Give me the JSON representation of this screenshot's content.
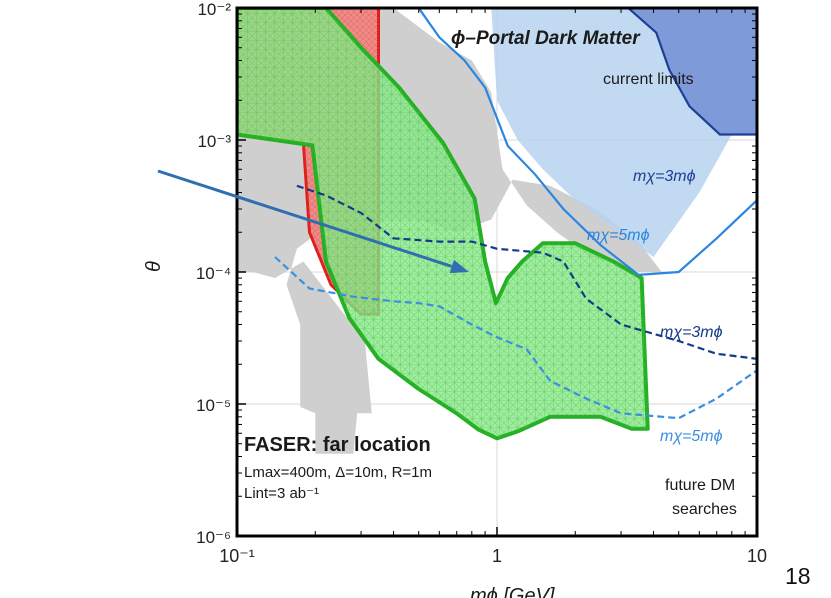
{
  "chart_data": {
    "type": "area",
    "title": "ϕ–Portal Dark Matter",
    "subtitle": "current limits",
    "xlabel": "mϕ [GeV]",
    "ylabel": "θ",
    "x_scale": "log",
    "y_scale": "log",
    "xlim": [
      0.1,
      10
    ],
    "ylim": [
      1e-06,
      0.01
    ],
    "grid": true,
    "x_ticks": [
      {
        "value": 0.1,
        "label": "10⁻¹"
      },
      {
        "value": 1,
        "label": "1"
      },
      {
        "value": 10,
        "label": "10"
      }
    ],
    "y_ticks": [
      {
        "value": 0.01,
        "label": "10⁻²"
      },
      {
        "value": 0.001,
        "label": "10⁻³"
      },
      {
        "value": 0.0001,
        "label": "10⁻⁴"
      },
      {
        "value": 1e-05,
        "label": "10⁻⁵"
      },
      {
        "value": 1e-06,
        "label": "10⁻⁶"
      }
    ],
    "regions": [
      {
        "key": "bbn_gray",
        "color": "#cfcfcf",
        "points": [
          [
            0.1,
            0.01
          ],
          [
            0.4,
            0.01
          ],
          [
            0.6,
            0.0055
          ],
          [
            0.8,
            0.004
          ],
          [
            0.95,
            0.0023
          ],
          [
            1.05,
            0.0006
          ],
          [
            1.3,
            0.00032
          ],
          [
            1.7,
            0.0002
          ],
          [
            2.3,
            0.00013
          ],
          [
            3.5,
            0.0001
          ],
          [
            4.3,
            0.0001
          ],
          [
            3.5,
            0.00017
          ],
          [
            2.4,
            0.0003
          ],
          [
            1.6,
            0.00045
          ],
          [
            1.15,
            0.0005
          ],
          [
            0.95,
            0.00025
          ],
          [
            0.7,
            0.0002
          ],
          [
            0.5,
            0.00025
          ],
          [
            0.35,
            0.00025
          ],
          [
            0.22,
            0.00022
          ],
          [
            0.17,
            0.00015
          ],
          [
            0.155,
            8e-05
          ],
          [
            0.175,
            4e-05
          ],
          [
            0.175,
            9.5e-06
          ],
          [
            0.2,
            8.5e-06
          ],
          [
            0.2,
            4.2e-06
          ],
          [
            0.28,
            4.2e-06
          ],
          [
            0.29,
            8.5e-06
          ],
          [
            0.33,
            8.5e-06
          ],
          [
            0.31,
            3e-05
          ],
          [
            0.18,
            0.00012
          ],
          [
            0.14,
            9e-05
          ],
          [
            0.115,
            0.0001
          ],
          [
            0.1,
            0.0001
          ]
        ]
      },
      {
        "key": "current_light",
        "color": "#b6d3ef",
        "points": [
          [
            0.95,
            0.01
          ],
          [
            10,
            0.01
          ],
          [
            10,
            0.0011
          ],
          [
            8,
            0.0011
          ],
          [
            6,
            0.0004
          ],
          [
            4,
            0.00013
          ],
          [
            2.6,
            0.00024
          ],
          [
            2,
            0.00035
          ],
          [
            1.5,
            0.0006
          ],
          [
            1.2,
            0.001
          ],
          [
            1,
            0.002
          ]
        ]
      },
      {
        "key": "current_dark",
        "color": "#7f9ad9",
        "points": [
          [
            3.2,
            0.01
          ],
          [
            10,
            0.01
          ],
          [
            10,
            0.0011
          ],
          [
            7.2,
            0.0011
          ],
          [
            5.5,
            0.0018
          ],
          [
            4.6,
            0.0034
          ],
          [
            4.1,
            0.0065
          ]
        ]
      },
      {
        "key": "red_excluded",
        "color": "#f28b85",
        "points": [
          [
            0.1,
            0.01
          ],
          [
            0.35,
            0.01
          ],
          [
            0.35,
            4.8e-05
          ],
          [
            0.3,
            4.8e-05
          ],
          [
            0.23,
            8e-05
          ],
          [
            0.19,
            0.0002
          ],
          [
            0.18,
            0.00095
          ],
          [
            0.1,
            0.0011
          ]
        ]
      },
      {
        "key": "faser_far",
        "color": "#88e888",
        "points": [
          [
            0.1,
            0.0011
          ],
          [
            0.195,
            0.00091
          ],
          [
            0.22,
            0.00012
          ],
          [
            0.27,
            4.5e-05
          ],
          [
            0.35,
            2.2e-05
          ],
          [
            0.5,
            1.3e-05
          ],
          [
            0.7,
            8.5e-06
          ],
          [
            0.85,
            6.4e-06
          ],
          [
            1,
            5.5e-06
          ],
          [
            1.2,
            6.2e-06
          ],
          [
            1.6,
            8e-06
          ],
          [
            2.5,
            8e-06
          ],
          [
            3.3,
            6.5e-06
          ],
          [
            3.8,
            6.5e-06
          ],
          [
            3.6,
            9e-05
          ],
          [
            2.8,
            0.00012
          ],
          [
            2,
            0.000165
          ],
          [
            1.5,
            0.000165
          ],
          [
            1.25,
            0.00012
          ],
          [
            1.1,
            9e-05
          ],
          [
            0.99,
            5.8e-05
          ],
          [
            0.9,
            0.00012
          ],
          [
            0.82,
            0.00036
          ],
          [
            0.62,
            0.00095
          ],
          [
            0.42,
            0.0025
          ],
          [
            0.3,
            0.005
          ],
          [
            0.22,
            0.01
          ],
          [
            0.1,
            0.01
          ]
        ]
      }
    ],
    "series": [
      {
        "key": "dark_3",
        "style": "dashed",
        "color": "#123c8a",
        "points": [
          [
            0.17,
            0.00045
          ],
          [
            0.22,
            0.00038
          ],
          [
            0.3,
            0.00028
          ],
          [
            0.4,
            0.00018
          ],
          [
            0.6,
            0.00017
          ],
          [
            0.8,
            0.00017
          ],
          [
            1,
            0.00015
          ],
          [
            1.5,
            0.00014
          ],
          [
            1.8,
            0.00012
          ],
          [
            2.2,
            6.3e-05
          ],
          [
            3,
            4e-05
          ],
          [
            5,
            3e-05
          ],
          [
            7,
            2.4e-05
          ],
          [
            10,
            2.2e-05
          ]
        ]
      },
      {
        "key": "dark_5",
        "style": "dashed",
        "color": "#3b8fe0",
        "points": [
          [
            0.14,
            0.00013
          ],
          [
            0.19,
            7.5e-05
          ],
          [
            0.28,
            6.5e-05
          ],
          [
            0.4,
            6e-05
          ],
          [
            0.5,
            5.8e-05
          ],
          [
            0.6,
            5.5e-05
          ],
          [
            0.8,
            4e-05
          ],
          [
            1,
            3.2e-05
          ],
          [
            1.3,
            2.6e-05
          ],
          [
            1.6,
            1.5e-05
          ],
          [
            2.2,
            1.1e-05
          ],
          [
            3,
            8.5e-06
          ],
          [
            5,
            7.8e-06
          ],
          [
            7,
            1.1e-05
          ],
          [
            10,
            1.8e-05
          ]
        ]
      },
      {
        "key": "current_3",
        "style": "solid",
        "color": "#1f3f95",
        "points": [
          [
            3.2,
            0.01
          ],
          [
            4.1,
            0.0065
          ],
          [
            4.6,
            0.0034
          ],
          [
            5.5,
            0.0018
          ],
          [
            7.2,
            0.0011
          ],
          [
            10,
            0.0011
          ]
        ]
      },
      {
        "key": "current_5",
        "style": "solid",
        "color": "#2a86e0",
        "points": [
          [
            0.5,
            0.01
          ],
          [
            0.6,
            0.006
          ],
          [
            0.75,
            0.004
          ],
          [
            0.9,
            0.0025
          ],
          [
            1.1,
            0.0009
          ],
          [
            1.4,
            0.00055
          ],
          [
            1.8,
            0.0003
          ],
          [
            2.5,
            0.00016
          ],
          [
            3.5,
            9.5e-05
          ],
          [
            5,
            0.0001
          ],
          [
            7,
            0.00018
          ],
          [
            10,
            0.00035
          ]
        ]
      }
    ],
    "annotations": {
      "mx3_current": "mχ=3mϕ",
      "mx5_current": "mχ=5mϕ",
      "mx3_future": "mχ=3mϕ",
      "mx5_future": "mχ=5mϕ",
      "faser_title": "FASER: far location",
      "faser_params": "Lmax=400m, Δ=10m, R=1m",
      "faser_lumi": "Lint=3 ab⁻¹",
      "future_dm_1": "future DM",
      "future_dm_2": "searches"
    },
    "arrow": {
      "color": "#2f6fb0",
      "tip_data": [
        0.78,
        0.0001
      ]
    },
    "colors": {
      "frame": "#000000",
      "grid": "#d8d8d8",
      "green_edge": "#23b023",
      "red_edge": "#e21b1b"
    }
  },
  "slide_number": "18"
}
